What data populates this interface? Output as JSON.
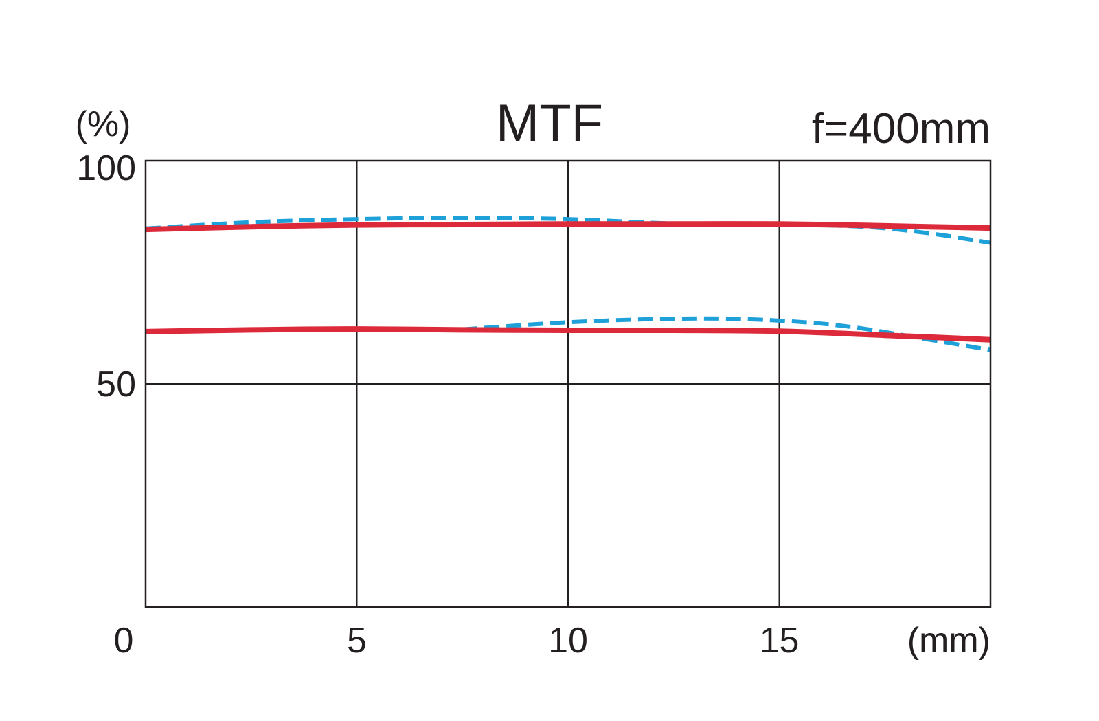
{
  "chart_data": {
    "type": "line",
    "title": "MTF",
    "annotation": "f=400mm",
    "ylabel": "(%)",
    "xlabel": "(mm)",
    "xlim": [
      0,
      20
    ],
    "ylim": [
      0,
      100
    ],
    "x_ticks": [
      0,
      5,
      10,
      15
    ],
    "y_ticks": [
      50,
      100
    ],
    "x_gridlines": [
      5,
      10,
      15
    ],
    "y_gridlines": [
      50
    ],
    "grid": true,
    "legend": "none",
    "colors": {
      "solid": "#dc2a3a",
      "dashed": "#1ea0d8",
      "axes": "#231f20"
    },
    "series": [
      {
        "style": "solid",
        "color": "#dc2a3a",
        "x": [
          0,
          2.5,
          5,
          7.5,
          10,
          12.5,
          15,
          17.5,
          20
        ],
        "y": [
          84.6,
          85.2,
          85.6,
          85.7,
          85.8,
          85.8,
          85.8,
          85.4,
          84.9
        ]
      },
      {
        "style": "dashed",
        "color": "#1ea0d8",
        "x": [
          0,
          2.5,
          5,
          7.5,
          10,
          12.5,
          15,
          17,
          18.5,
          20
        ],
        "y": [
          84.8,
          86.2,
          86.9,
          87.2,
          86.9,
          85.9,
          85.7,
          85.2,
          83.8,
          81.6
        ]
      },
      {
        "style": "solid",
        "color": "#dc2a3a",
        "x": [
          0,
          2.5,
          5,
          7.5,
          10,
          12.5,
          15,
          17.5,
          20
        ],
        "y": [
          61.7,
          62.1,
          62.3,
          62.1,
          62.0,
          62.0,
          61.8,
          60.9,
          59.9
        ]
      },
      {
        "style": "dashed",
        "color": "#1ea0d8",
        "x": [
          7.5,
          10,
          12.5,
          14.5,
          16.5,
          18.5,
          20
        ],
        "y": [
          62.2,
          63.8,
          64.6,
          64.4,
          63.0,
          60.0,
          57.6
        ]
      }
    ]
  }
}
